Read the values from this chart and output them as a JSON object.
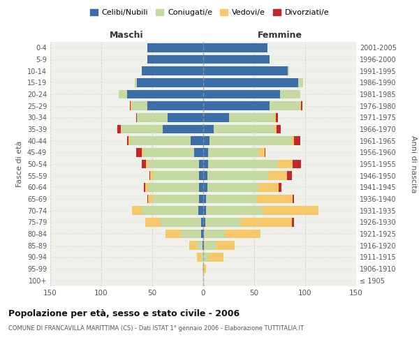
{
  "age_groups": [
    "100+",
    "95-99",
    "90-94",
    "85-89",
    "80-84",
    "75-79",
    "70-74",
    "65-69",
    "60-64",
    "55-59",
    "50-54",
    "45-49",
    "40-44",
    "35-39",
    "30-34",
    "25-29",
    "20-24",
    "15-19",
    "10-14",
    "5-9",
    "0-4"
  ],
  "birth_years": [
    "≤ 1905",
    "1906-1910",
    "1911-1915",
    "1916-1920",
    "1921-1925",
    "1926-1930",
    "1931-1935",
    "1936-1940",
    "1941-1945",
    "1946-1950",
    "1951-1955",
    "1956-1960",
    "1961-1965",
    "1966-1970",
    "1971-1975",
    "1976-1980",
    "1981-1985",
    "1986-1990",
    "1991-1995",
    "1996-2000",
    "2001-2005"
  ],
  "males": {
    "celibi": [
      0,
      0,
      0,
      1,
      2,
      2,
      5,
      4,
      4,
      4,
      4,
      9,
      12,
      40,
      35,
      55,
      75,
      65,
      60,
      55,
      55
    ],
    "coniugati": [
      0,
      0,
      2,
      5,
      20,
      40,
      55,
      45,
      50,
      45,
      50,
      50,
      60,
      40,
      30,
      15,
      8,
      2,
      0,
      0,
      0
    ],
    "vedovi": [
      0,
      1,
      4,
      8,
      15,
      15,
      10,
      5,
      3,
      3,
      2,
      1,
      1,
      1,
      0,
      1,
      0,
      0,
      0,
      0,
      0
    ],
    "divorziati": [
      0,
      0,
      0,
      0,
      0,
      0,
      0,
      1,
      1,
      1,
      4,
      6,
      2,
      3,
      1,
      1,
      0,
      0,
      0,
      0,
      0
    ]
  },
  "females": {
    "nubili": [
      0,
      0,
      0,
      1,
      1,
      2,
      3,
      3,
      4,
      4,
      5,
      5,
      6,
      10,
      25,
      65,
      75,
      93,
      83,
      65,
      63
    ],
    "coniugate": [
      0,
      1,
      5,
      12,
      20,
      35,
      55,
      50,
      50,
      60,
      68,
      50,
      80,
      60,
      45,
      30,
      20,
      5,
      1,
      0,
      0
    ],
    "vedove": [
      0,
      2,
      15,
      18,
      35,
      50,
      55,
      35,
      20,
      18,
      15,
      5,
      3,
      2,
      1,
      1,
      0,
      0,
      0,
      0,
      0
    ],
    "divorziate": [
      0,
      0,
      0,
      0,
      0,
      2,
      0,
      1,
      3,
      5,
      8,
      1,
      6,
      4,
      2,
      1,
      0,
      0,
      0,
      0,
      0
    ]
  },
  "colors": {
    "celibi_nubili": "#3B6EA8",
    "coniugati": "#C5D9A0",
    "vedovi": "#F5C96A",
    "divorziati": "#C0282C"
  },
  "xlim": 150,
  "title": "Popolazione per età, sesso e stato civile - 2006",
  "subtitle": "COMUNE DI FRANCAVILLA MARITTIMA (CS) - Dati ISTAT 1° gennaio 2006 - Elaborazione TUTTITALIA.IT",
  "ylabel_left": "Fasce di età",
  "ylabel_right": "Anni di nascita",
  "legend_labels": [
    "Celibi/Nubili",
    "Coniugati/e",
    "Vedovi/e",
    "Divorziati/e"
  ],
  "header_maschi": "Maschi",
  "header_femmine": "Femmine",
  "bg_color": "#FFFFFF",
  "plot_bg_color": "#F0F0EB",
  "grid_color": "#CCCCCC"
}
